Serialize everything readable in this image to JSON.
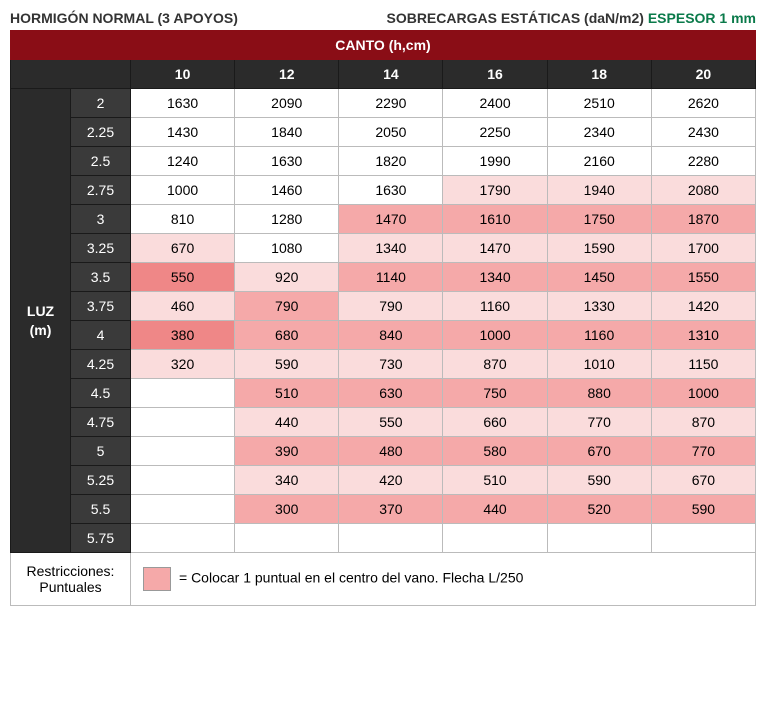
{
  "header": {
    "left": "HORMIGÓN NORMAL (3 APOYOS)",
    "right_prefix": "SOBRECARGAS ESTÁTICAS (daN/m2) ",
    "espesor": "ESPESOR 1 mm"
  },
  "banner": "CANTO (h,cm)",
  "column_headers": [
    "10",
    "12",
    "14",
    "16",
    "18",
    "20"
  ],
  "row_group_label_line1": "LUZ",
  "row_group_label_line2": "(m)",
  "row_labels": [
    "2",
    "2.25",
    "2.5",
    "2.75",
    "3",
    "3.25",
    "3.5",
    "3.75",
    "4",
    "4.25",
    "4.5",
    "4.75",
    "5",
    "5.25",
    "5.5",
    "5.75"
  ],
  "cells": [
    [
      {
        "v": "1630",
        "s": 0
      },
      {
        "v": "2090",
        "s": 0
      },
      {
        "v": "2290",
        "s": 0
      },
      {
        "v": "2400",
        "s": 0
      },
      {
        "v": "2510",
        "s": 0
      },
      {
        "v": "2620",
        "s": 0
      }
    ],
    [
      {
        "v": "1430",
        "s": 0
      },
      {
        "v": "1840",
        "s": 0
      },
      {
        "v": "2050",
        "s": 0
      },
      {
        "v": "2250",
        "s": 0
      },
      {
        "v": "2340",
        "s": 0
      },
      {
        "v": "2430",
        "s": 0
      }
    ],
    [
      {
        "v": "1240",
        "s": 0
      },
      {
        "v": "1630",
        "s": 0
      },
      {
        "v": "1820",
        "s": 0
      },
      {
        "v": "1990",
        "s": 0
      },
      {
        "v": "2160",
        "s": 0
      },
      {
        "v": "2280",
        "s": 0
      }
    ],
    [
      {
        "v": "1000",
        "s": 0
      },
      {
        "v": "1460",
        "s": 0
      },
      {
        "v": "1630",
        "s": 0
      },
      {
        "v": "1790",
        "s": 1
      },
      {
        "v": "1940",
        "s": 1
      },
      {
        "v": "2080",
        "s": 1
      }
    ],
    [
      {
        "v": "810",
        "s": 0
      },
      {
        "v": "1280",
        "s": 0
      },
      {
        "v": "1470",
        "s": 2
      },
      {
        "v": "1610",
        "s": 2
      },
      {
        "v": "1750",
        "s": 2
      },
      {
        "v": "1870",
        "s": 2
      }
    ],
    [
      {
        "v": "670",
        "s": 1
      },
      {
        "v": "1080",
        "s": 0
      },
      {
        "v": "1340",
        "s": 1
      },
      {
        "v": "1470",
        "s": 1
      },
      {
        "v": "1590",
        "s": 1
      },
      {
        "v": "1700",
        "s": 1
      }
    ],
    [
      {
        "v": "550",
        "s": 3
      },
      {
        "v": "920",
        "s": 1
      },
      {
        "v": "1140",
        "s": 2
      },
      {
        "v": "1340",
        "s": 2
      },
      {
        "v": "1450",
        "s": 2
      },
      {
        "v": "1550",
        "s": 2
      }
    ],
    [
      {
        "v": "460",
        "s": 1
      },
      {
        "v": "790",
        "s": 2
      },
      {
        "v": "790",
        "s": 1
      },
      {
        "v": "1160",
        "s": 1
      },
      {
        "v": "1330",
        "s": 1
      },
      {
        "v": "1420",
        "s": 1
      }
    ],
    [
      {
        "v": "380",
        "s": 3
      },
      {
        "v": "680",
        "s": 2
      },
      {
        "v": "840",
        "s": 2
      },
      {
        "v": "1000",
        "s": 2
      },
      {
        "v": "1160",
        "s": 2
      },
      {
        "v": "1310",
        "s": 2
      }
    ],
    [
      {
        "v": "320",
        "s": 1
      },
      {
        "v": "590",
        "s": 1
      },
      {
        "v": "730",
        "s": 1
      },
      {
        "v": "870",
        "s": 1
      },
      {
        "v": "1010",
        "s": 1
      },
      {
        "v": "1150",
        "s": 1
      }
    ],
    [
      {
        "v": "",
        "s": 0
      },
      {
        "v": "510",
        "s": 2
      },
      {
        "v": "630",
        "s": 2
      },
      {
        "v": "750",
        "s": 2
      },
      {
        "v": "880",
        "s": 2
      },
      {
        "v": "1000",
        "s": 2
      }
    ],
    [
      {
        "v": "",
        "s": 0
      },
      {
        "v": "440",
        "s": 1
      },
      {
        "v": "550",
        "s": 1
      },
      {
        "v": "660",
        "s": 1
      },
      {
        "v": "770",
        "s": 1
      },
      {
        "v": "870",
        "s": 1
      }
    ],
    [
      {
        "v": "",
        "s": 0
      },
      {
        "v": "390",
        "s": 2
      },
      {
        "v": "480",
        "s": 2
      },
      {
        "v": "580",
        "s": 2
      },
      {
        "v": "670",
        "s": 2
      },
      {
        "v": "770",
        "s": 2
      }
    ],
    [
      {
        "v": "",
        "s": 0
      },
      {
        "v": "340",
        "s": 1
      },
      {
        "v": "420",
        "s": 1
      },
      {
        "v": "510",
        "s": 1
      },
      {
        "v": "590",
        "s": 1
      },
      {
        "v": "670",
        "s": 1
      }
    ],
    [
      {
        "v": "",
        "s": 0
      },
      {
        "v": "300",
        "s": 2
      },
      {
        "v": "370",
        "s": 2
      },
      {
        "v": "440",
        "s": 2
      },
      {
        "v": "520",
        "s": 2
      },
      {
        "v": "590",
        "s": 2
      }
    ],
    [
      {
        "v": "",
        "s": 0
      },
      {
        "v": "",
        "s": 0
      },
      {
        "v": "",
        "s": 0
      },
      {
        "v": "",
        "s": 0
      },
      {
        "v": "",
        "s": 0
      },
      {
        "v": "",
        "s": 0
      }
    ]
  ],
  "legend": {
    "left_line1": "Restricciones:",
    "left_line2": "Puntuales",
    "right_text": "= Colocar 1 puntual en el centro del vano. Flecha L/250"
  },
  "shade_classes": [
    "shade-none",
    "shade-light",
    "shade-mid",
    "shade-dark"
  ],
  "colors": {
    "banner": "#8a0d16",
    "dark_head": "#2b2b2b",
    "dark_sub": "#3a3a3a",
    "shade_light": "#fadcdc",
    "shade_mid": "#f5a9a9",
    "shade_dark": "#ef8787",
    "espesor_text": "#0a7a4a"
  }
}
